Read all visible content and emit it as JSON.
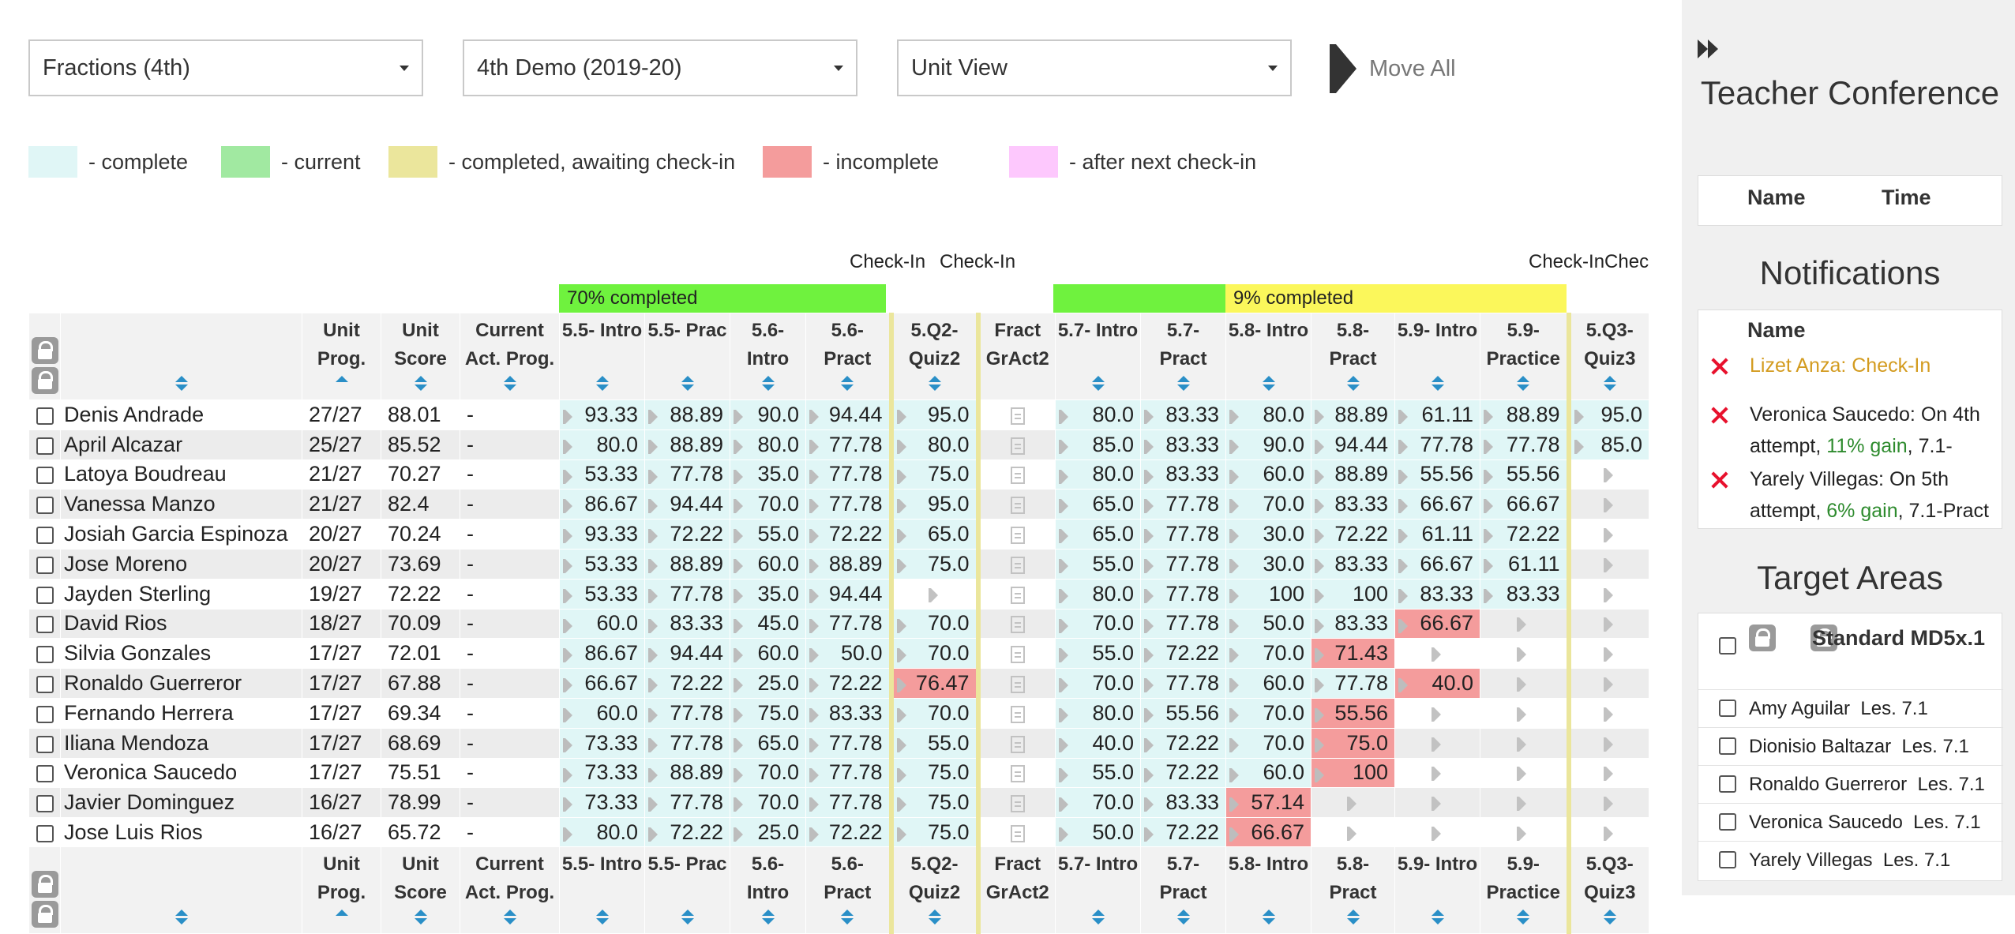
{
  "selectors": [
    {
      "value": "Fractions (4th)"
    },
    {
      "value": "4th Demo (2019-20)"
    },
    {
      "value": "Unit View"
    }
  ],
  "move_all_label": "Move All",
  "legend": [
    {
      "color": "#e0f6f6",
      "label": "- complete"
    },
    {
      "color": "#a1e9a1",
      "label": "- current"
    },
    {
      "color": "#ebe69c",
      "label": "- completed, awaiting check-in"
    },
    {
      "color": "#f49c9c",
      "label": "- incomplete"
    },
    {
      "color": "#fdc8fd",
      "label": "- after next check-in"
    }
  ],
  "checkin_labels": [
    "Check-In",
    "Check-In",
    "Check-InChec"
  ],
  "progress_bands": [
    {
      "label": "70% completed",
      "color": "#6ff23e"
    },
    {
      "label": "",
      "color": "#6ff23e"
    },
    {
      "label": "9% completed",
      "color": "#fbf75b"
    }
  ],
  "colors": {
    "complete": "#e0f6f6",
    "incomplete": "#f49c9c",
    "divider": "#ebe69c",
    "sort": "#2a8fc7"
  },
  "columns": [
    {
      "label": ""
    },
    {
      "label": ""
    },
    {
      "label": "Unit Prog."
    },
    {
      "label": "Unit Score"
    },
    {
      "label": "Current Act. Prog."
    },
    {
      "label": "5.5- Intro"
    },
    {
      "label": "5.5- Prac"
    },
    {
      "label": "5.6- Intro"
    },
    {
      "label": "5.6- Pract"
    },
    {
      "label": "5.Q2- Quiz2"
    },
    {
      "label": "Fract GrAct2"
    },
    {
      "label": "5.7- Intro"
    },
    {
      "label": "5.7- Pract"
    },
    {
      "label": "5.8- Intro"
    },
    {
      "label": "5.8- Pract"
    },
    {
      "label": "5.9- Intro"
    },
    {
      "label": "5.9- Practice"
    },
    {
      "label": "5.Q3- Quiz3"
    }
  ],
  "rows": [
    {
      "name": "Denis Andrade",
      "prog": "27/27",
      "score": "88.01",
      "act": "-",
      "cells": [
        "93.33",
        "88.89",
        "90.0",
        "94.44",
        "95.0",
        "",
        "80.0",
        "83.33",
        "80.0",
        "88.89",
        "61.11",
        "88.89",
        "95.0"
      ],
      "status": [
        "c",
        "c",
        "c",
        "c",
        "c",
        "d",
        "c",
        "c",
        "c",
        "c",
        "c",
        "c",
        "c"
      ]
    },
    {
      "name": "April Alcazar",
      "prog": "25/27",
      "score": "85.52",
      "act": "-",
      "cells": [
        "80.0",
        "88.89",
        "80.0",
        "77.78",
        "80.0",
        "",
        "85.0",
        "83.33",
        "90.0",
        "94.44",
        "77.78",
        "77.78",
        "85.0"
      ],
      "status": [
        "c",
        "c",
        "c",
        "c",
        "c",
        "d",
        "c",
        "c",
        "c",
        "c",
        "c",
        "c",
        "c"
      ]
    },
    {
      "name": "Latoya Boudreau",
      "prog": "21/27",
      "score": "70.27",
      "act": "-",
      "cells": [
        "53.33",
        "77.78",
        "35.0",
        "77.78",
        "75.0",
        "",
        "80.0",
        "83.33",
        "60.0",
        "88.89",
        "55.56",
        "55.56",
        ""
      ],
      "status": [
        "c",
        "c",
        "c",
        "c",
        "c",
        "d",
        "c",
        "c",
        "c",
        "c",
        "c",
        "c",
        "e"
      ]
    },
    {
      "name": "Vanessa Manzo",
      "prog": "21/27",
      "score": "82.4",
      "act": "-",
      "cells": [
        "86.67",
        "94.44",
        "70.0",
        "77.78",
        "95.0",
        "",
        "65.0",
        "77.78",
        "70.0",
        "83.33",
        "66.67",
        "66.67",
        ""
      ],
      "status": [
        "c",
        "c",
        "c",
        "c",
        "c",
        "d",
        "c",
        "c",
        "c",
        "c",
        "c",
        "c",
        "e"
      ]
    },
    {
      "name": "Josiah Garcia Espinoza",
      "prog": "20/27",
      "score": "70.24",
      "act": "-",
      "cells": [
        "93.33",
        "72.22",
        "55.0",
        "72.22",
        "65.0",
        "",
        "65.0",
        "77.78",
        "30.0",
        "72.22",
        "61.11",
        "72.22",
        ""
      ],
      "status": [
        "c",
        "c",
        "c",
        "c",
        "c",
        "d",
        "c",
        "c",
        "c",
        "c",
        "c",
        "c",
        "e"
      ]
    },
    {
      "name": "Jose Moreno",
      "prog": "20/27",
      "score": "73.69",
      "act": "-",
      "cells": [
        "53.33",
        "88.89",
        "60.0",
        "88.89",
        "75.0",
        "",
        "55.0",
        "77.78",
        "30.0",
        "83.33",
        "66.67",
        "61.11",
        ""
      ],
      "status": [
        "c",
        "c",
        "c",
        "c",
        "c",
        "d",
        "c",
        "c",
        "c",
        "c",
        "c",
        "c",
        "e"
      ]
    },
    {
      "name": "Jayden Sterling",
      "prog": "19/27",
      "score": "72.22",
      "act": "-",
      "cells": [
        "53.33",
        "77.78",
        "35.0",
        "94.44",
        "",
        "",
        "80.0",
        "77.78",
        "100",
        "100",
        "83.33",
        "83.33",
        ""
      ],
      "status": [
        "c",
        "c",
        "c",
        "c",
        "e",
        "d",
        "c",
        "c",
        "c",
        "c",
        "c",
        "c",
        "e"
      ]
    },
    {
      "name": "David Rios",
      "prog": "18/27",
      "score": "70.09",
      "act": "-",
      "cells": [
        "60.0",
        "83.33",
        "45.0",
        "77.78",
        "70.0",
        "",
        "70.0",
        "77.78",
        "50.0",
        "83.33",
        "66.67",
        "",
        ""
      ],
      "status": [
        "c",
        "c",
        "c",
        "c",
        "c",
        "d",
        "c",
        "c",
        "c",
        "c",
        "i",
        "e",
        "e"
      ]
    },
    {
      "name": "Silvia Gonzales",
      "prog": "17/27",
      "score": "72.01",
      "act": "-",
      "cells": [
        "86.67",
        "94.44",
        "60.0",
        "50.0",
        "70.0",
        "",
        "55.0",
        "72.22",
        "70.0",
        "71.43",
        "",
        "",
        ""
      ],
      "status": [
        "c",
        "c",
        "c",
        "c",
        "c",
        "d",
        "c",
        "c",
        "c",
        "i",
        "e",
        "e",
        "e"
      ]
    },
    {
      "name": "Ronaldo Guerreror",
      "prog": "17/27",
      "score": "67.88",
      "act": "-",
      "cells": [
        "66.67",
        "72.22",
        "25.0",
        "72.22",
        "76.47",
        "",
        "70.0",
        "77.78",
        "60.0",
        "77.78",
        "40.0",
        "",
        ""
      ],
      "status": [
        "c",
        "c",
        "c",
        "c",
        "i",
        "d",
        "c",
        "c",
        "c",
        "c",
        "i",
        "e",
        "e"
      ]
    },
    {
      "name": "Fernando Herrera",
      "prog": "17/27",
      "score": "69.34",
      "act": "-",
      "cells": [
        "60.0",
        "77.78",
        "75.0",
        "83.33",
        "70.0",
        "",
        "80.0",
        "55.56",
        "70.0",
        "55.56",
        "",
        "",
        ""
      ],
      "status": [
        "c",
        "c",
        "c",
        "c",
        "c",
        "d",
        "c",
        "c",
        "c",
        "i",
        "e",
        "e",
        "e"
      ]
    },
    {
      "name": "Iliana Mendoza",
      "prog": "17/27",
      "score": "68.69",
      "act": "-",
      "cells": [
        "73.33",
        "77.78",
        "65.0",
        "77.78",
        "55.0",
        "",
        "40.0",
        "72.22",
        "70.0",
        "75.0",
        "",
        "",
        ""
      ],
      "status": [
        "c",
        "c",
        "c",
        "c",
        "c",
        "d",
        "c",
        "c",
        "c",
        "i",
        "e",
        "e",
        "e"
      ]
    },
    {
      "name": "Veronica Saucedo",
      "prog": "17/27",
      "score": "75.51",
      "act": "-",
      "cells": [
        "73.33",
        "88.89",
        "70.0",
        "77.78",
        "75.0",
        "",
        "55.0",
        "72.22",
        "60.0",
        "100",
        "",
        "",
        ""
      ],
      "status": [
        "c",
        "c",
        "c",
        "c",
        "c",
        "d",
        "c",
        "c",
        "c",
        "i",
        "e",
        "e",
        "e"
      ]
    },
    {
      "name": "Javier Dominguez",
      "prog": "16/27",
      "score": "78.99",
      "act": "-",
      "cells": [
        "73.33",
        "77.78",
        "70.0",
        "77.78",
        "75.0",
        "",
        "70.0",
        "83.33",
        "57.14",
        "",
        "",
        "",
        ""
      ],
      "status": [
        "c",
        "c",
        "c",
        "c",
        "c",
        "d",
        "c",
        "c",
        "i",
        "e",
        "e",
        "e",
        "e"
      ]
    },
    {
      "name": "Jose Luis Rios",
      "prog": "16/27",
      "score": "65.72",
      "act": "-",
      "cells": [
        "80.0",
        "72.22",
        "25.0",
        "72.22",
        "75.0",
        "",
        "50.0",
        "72.22",
        "66.67",
        "",
        "",
        "",
        ""
      ],
      "status": [
        "c",
        "c",
        "c",
        "c",
        "c",
        "d",
        "c",
        "c",
        "i",
        "e",
        "e",
        "e",
        "e"
      ]
    }
  ],
  "panel": {
    "teacher_title": "Teacher Conference",
    "teacher_cols": [
      "Name",
      "Time"
    ],
    "notifications_title": "Notifications",
    "notifications_header": "Name",
    "notifications": [
      {
        "text": "Lizet Anza: Check-In",
        "pre": "",
        "gain": "",
        "post": ""
      },
      {
        "text": "",
        "pre": "Veronica Saucedo: On 4th attempt, ",
        "gain": "11% gain",
        "post": ", 7.1-"
      },
      {
        "text": "",
        "pre": "Yarely Villegas: On 5th attempt, ",
        "gain": "6% gain",
        "post": ", 7.1-Pract"
      }
    ],
    "target_title": "Target Areas",
    "target_standard": "Standard MD5x.1",
    "targets": [
      {
        "name": "Amy Aguilar",
        "lesson": "Les. 7.1"
      },
      {
        "name": "Dionisio Baltazar",
        "lesson": "Les. 7.1"
      },
      {
        "name": "Ronaldo Guerreror",
        "lesson": "Les. 7.1"
      },
      {
        "name": "Veronica Saucedo",
        "lesson": "Les. 7.1"
      },
      {
        "name": "Yarely Villegas",
        "lesson": "Les. 7.1"
      }
    ]
  }
}
